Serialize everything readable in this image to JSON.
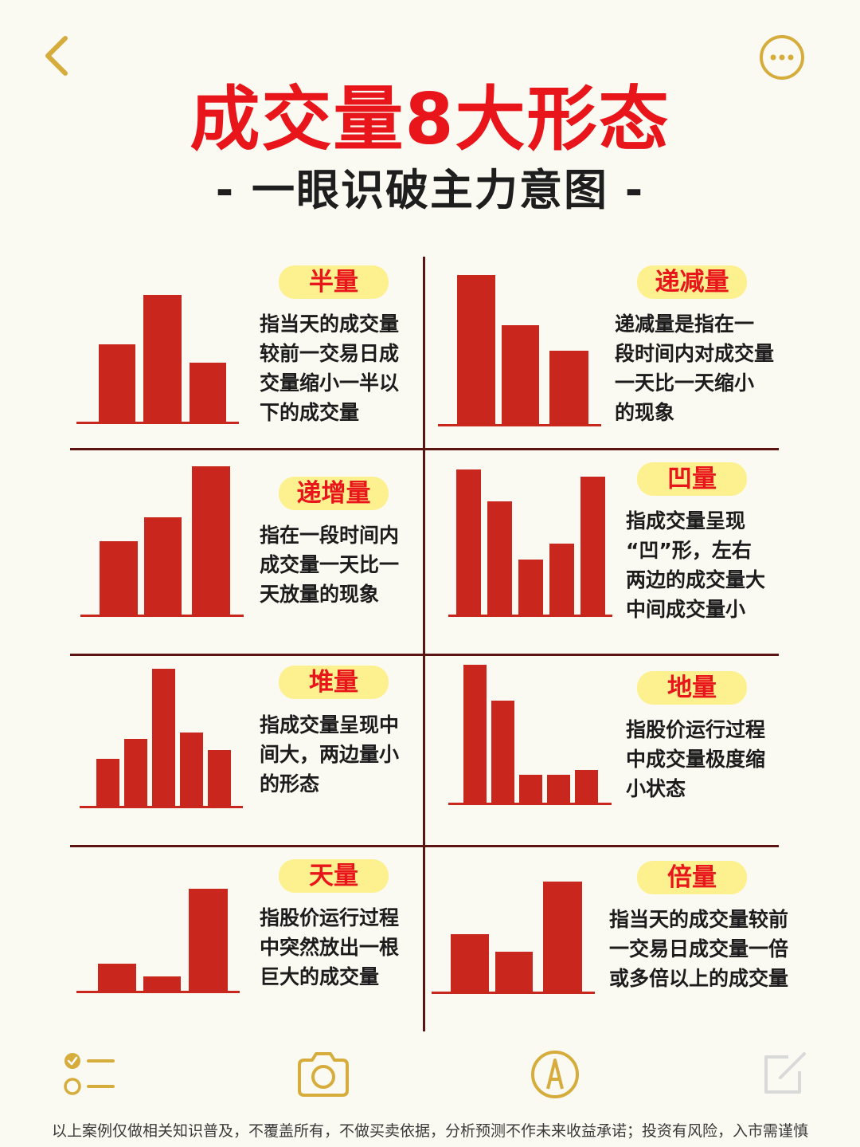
{
  "header": {
    "title": "成交量8大形态",
    "subtitle": "- 一眼识破主力意图 -"
  },
  "colors": {
    "accent_red": "#e8151b",
    "bar_red": "#c9261d",
    "pill_yellow": "#fdf08f",
    "icon_gold": "#d6ad3c",
    "divider": "#5c1413",
    "background": "#fbfaf2"
  },
  "patterns": [
    {
      "label": "半量",
      "desc": [
        "指当天的成交量",
        "较前一交易日成",
        "交量缩小一半以",
        "下的成交量"
      ]
    },
    {
      "label": "递减量",
      "desc": [
        "递减量是指在一",
        "段时间内对成交量",
        "一天比一天缩小",
        "的现象"
      ]
    },
    {
      "label": "递增量",
      "desc": [
        "指在一段时间内",
        "成交量一天比一",
        "天放量的现象"
      ]
    },
    {
      "label": "凹量",
      "desc": [
        "指成交量呈现",
        "“凹”形，左右",
        "两边的成交量大",
        "中间成交量小"
      ]
    },
    {
      "label": "堆量",
      "desc": [
        "指成交量呈现中",
        "间大，两边量小",
        "的形态"
      ]
    },
    {
      "label": "地量",
      "desc": [
        "指股价运行过程",
        "中成交量极度缩",
        "小状态"
      ]
    },
    {
      "label": "天量",
      "desc": [
        "指股价运行过程",
        "中突然放出一根",
        "巨大的成交量"
      ]
    },
    {
      "label": "倍量",
      "desc": [
        "指当天的成交量较前",
        "一交易日成交量一倍",
        "或多倍以上的成交量"
      ]
    }
  ],
  "toolbar": {
    "icons": [
      "checklist-icon",
      "camera-icon",
      "pen-icon",
      "edit-icon"
    ]
  },
  "footer": {
    "disclaimer": "以上案例仅做相关知识普及，不覆盖所有，不做买卖依据，分析预测不作未来收益承诺；投资有风险，入市需谨慎"
  }
}
